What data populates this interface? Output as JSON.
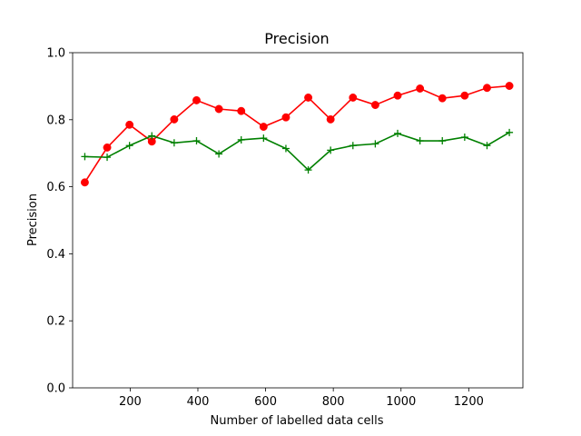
{
  "chart_data": {
    "type": "line",
    "title": "Precision",
    "xlabel": "Number of labelled data cells",
    "ylabel": "Precision",
    "xlim": [
      30,
      1360
    ],
    "ylim": [
      0.0,
      1.0
    ],
    "x_ticks": [
      200,
      400,
      600,
      800,
      1000,
      1200
    ],
    "y_ticks": [
      0.0,
      0.2,
      0.4,
      0.6,
      0.8,
      1.0
    ],
    "y_tick_labels": [
      "0.0",
      "0.2",
      "0.4",
      "0.6",
      "0.8",
      "1.0"
    ],
    "grid": false,
    "series": [
      {
        "color": "#ff0000",
        "marker": "circle",
        "x": [
          66,
          132,
          198,
          264,
          330,
          396,
          462,
          528,
          594,
          660,
          726,
          792,
          858,
          924,
          990,
          1056,
          1122,
          1188,
          1254,
          1320
        ],
        "values": [
          0.613,
          0.717,
          0.785,
          0.735,
          0.801,
          0.858,
          0.832,
          0.826,
          0.779,
          0.807,
          0.866,
          0.801,
          0.866,
          0.844,
          0.872,
          0.893,
          0.864,
          0.872,
          0.895,
          0.901
        ]
      },
      {
        "color": "#008000",
        "marker": "plus",
        "x": [
          66,
          132,
          198,
          264,
          330,
          396,
          462,
          528,
          594,
          660,
          726,
          792,
          858,
          924,
          990,
          1056,
          1122,
          1188,
          1254,
          1320
        ],
        "values": [
          0.69,
          0.688,
          0.723,
          0.752,
          0.731,
          0.737,
          0.698,
          0.74,
          0.745,
          0.714,
          0.65,
          0.709,
          0.723,
          0.728,
          0.759,
          0.737,
          0.737,
          0.748,
          0.723,
          0.762
        ]
      }
    ]
  }
}
